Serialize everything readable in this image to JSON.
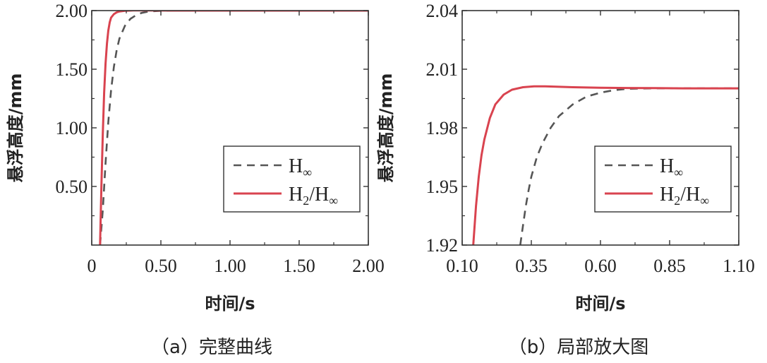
{
  "figure": {
    "captions": [
      "（a）完整曲线",
      "（b）局部放大图"
    ]
  },
  "chart_data": [
    {
      "type": "line",
      "panel": "a",
      "xlabel": "时间/s",
      "ylabel": "悬浮高度/mm",
      "xlim": [
        0,
        2.0
      ],
      "ylim": [
        0,
        2.0
      ],
      "xticks": [
        "0",
        "0.50",
        "1.00",
        "1.50",
        "2.00"
      ],
      "xtick_values": [
        0,
        0.5,
        1.0,
        1.5,
        2.0
      ],
      "yticks": [
        "0.50",
        "1.00",
        "1.50",
        "2.00"
      ],
      "ytick_values": [
        0.5,
        1.0,
        1.5,
        2.0
      ],
      "legend": {
        "position": "lower-right",
        "entries": [
          {
            "main": "H",
            "sub": "∞",
            "style": "dashed",
            "color": "#555555"
          },
          {
            "main": "H",
            "sub": "2",
            "main2": "/H",
            "sub2": "∞",
            "style": "solid",
            "color": "#d9434f"
          }
        ]
      },
      "series": [
        {
          "name": "H∞",
          "color": "#555555",
          "dash": true,
          "x": [
            0.06,
            0.08,
            0.1,
            0.12,
            0.14,
            0.16,
            0.18,
            0.2,
            0.24,
            0.28,
            0.32,
            0.36,
            0.4,
            0.45,
            0.5,
            0.6,
            0.8,
            1.0,
            1.5,
            2.0
          ],
          "y": [
            0.0,
            0.3,
            0.7,
            1.05,
            1.32,
            1.52,
            1.66,
            1.76,
            1.87,
            1.93,
            1.96,
            1.98,
            1.99,
            1.995,
            1.998,
            2.0,
            2.0,
            2.0,
            2.0,
            2.0
          ]
        },
        {
          "name": "H2/H∞",
          "color": "#d9434f",
          "dash": false,
          "x": [
            0.06,
            0.07,
            0.08,
            0.09,
            0.1,
            0.11,
            0.12,
            0.13,
            0.14,
            0.16,
            0.18,
            0.2,
            0.24,
            0.3,
            0.4,
            0.6,
            1.0,
            1.5,
            2.0
          ],
          "y": [
            0.0,
            0.5,
            0.95,
            1.3,
            1.55,
            1.72,
            1.83,
            1.9,
            1.94,
            1.97,
            1.985,
            1.993,
            1.999,
            2.001,
            2.001,
            2.0,
            2.0,
            2.0,
            2.0
          ]
        }
      ]
    },
    {
      "type": "line",
      "panel": "b",
      "xlabel": "时间/s",
      "ylabel": "悬浮高度/mm",
      "xlim": [
        0.1,
        1.1
      ],
      "ylim": [
        1.92,
        2.04
      ],
      "xticks": [
        "0.10",
        "0.35",
        "0.60",
        "0.85",
        "1.10"
      ],
      "xtick_values": [
        0.1,
        0.35,
        0.6,
        0.85,
        1.1
      ],
      "yticks": [
        "1.92",
        "1.95",
        "1.98",
        "2.01",
        "2.04"
      ],
      "ytick_values": [
        1.92,
        1.95,
        1.98,
        2.01,
        2.04
      ],
      "legend": {
        "position": "lower-right",
        "entries": [
          {
            "main": "H",
            "sub": "∞",
            "style": "dashed",
            "color": "#555555"
          },
          {
            "main": "H",
            "sub": "2",
            "main2": "/H",
            "sub2": "∞",
            "style": "solid",
            "color": "#d9434f"
          }
        ]
      },
      "series": [
        {
          "name": "H∞",
          "color": "#555555",
          "dash": true,
          "x": [
            0.31,
            0.32,
            0.33,
            0.34,
            0.35,
            0.37,
            0.39,
            0.42,
            0.45,
            0.5,
            0.55,
            0.6,
            0.65,
            0.7,
            0.8,
            0.9,
            1.0,
            1.1
          ],
          "y": [
            1.92,
            1.93,
            1.94,
            1.948,
            1.955,
            1.965,
            1.972,
            1.98,
            1.986,
            1.992,
            1.996,
            1.998,
            1.9993,
            2.0,
            2.0002,
            2.0002,
            2.0002,
            2.0002
          ]
        },
        {
          "name": "H2/H∞",
          "color": "#d9434f",
          "dash": false,
          "x": [
            0.14,
            0.15,
            0.16,
            0.17,
            0.18,
            0.2,
            0.22,
            0.25,
            0.28,
            0.32,
            0.36,
            0.4,
            0.45,
            0.5,
            0.6,
            0.7,
            0.8,
            0.9,
            1.0,
            1.1
          ],
          "y": [
            1.92,
            1.94,
            1.955,
            1.966,
            1.974,
            1.985,
            1.992,
            1.997,
            1.9995,
            2.0008,
            2.0012,
            2.0012,
            2.001,
            2.0008,
            2.0005,
            2.0004,
            2.0003,
            2.0002,
            2.0002,
            2.0002
          ]
        }
      ]
    }
  ]
}
